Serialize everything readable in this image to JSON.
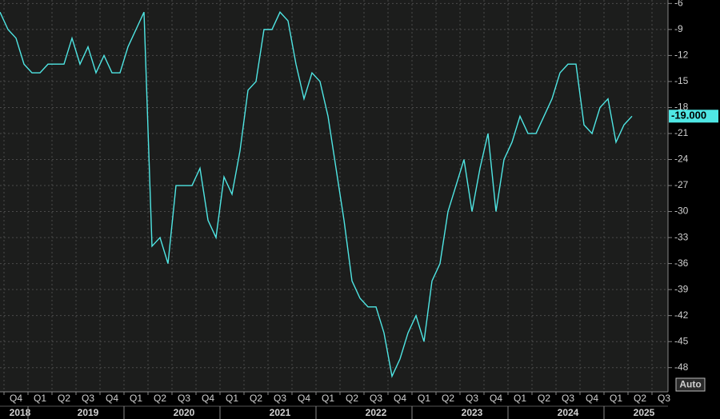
{
  "chart_data": {
    "type": "line",
    "series": [
      {
        "color": "#4fe6e4",
        "values": [
          -7,
          -9,
          -10,
          -13,
          -14,
          -14,
          -13,
          -13,
          -13,
          -10,
          -13,
          -11,
          -14,
          -12,
          -14,
          -14,
          -11,
          -9,
          -7,
          -34,
          -33,
          -36,
          -27,
          -27,
          -27,
          -25,
          -31,
          -33,
          -26,
          -28,
          -23,
          -16,
          -15,
          -9,
          -9,
          -7,
          -8,
          -13,
          -17,
          -14,
          -15,
          -19,
          -25,
          -31,
          -38,
          -40,
          -41,
          -41,
          -44,
          -49,
          -47,
          -44,
          -42,
          -45,
          -38,
          -36,
          -30,
          -27,
          -24,
          -30,
          -25,
          -21,
          -30,
          -24,
          -22,
          -19,
          -21,
          -21,
          -19,
          -17,
          -14,
          -13,
          -13,
          -20,
          -21,
          -18,
          -17,
          -22,
          -20,
          -19
        ]
      }
    ],
    "last_label": "-19.000",
    "ylim": [
      -50.7,
      -5.6
    ],
    "yticks": [
      -6,
      -9,
      -12,
      -15,
      -18,
      -21,
      -24,
      -27,
      -30,
      -33,
      -36,
      -39,
      -42,
      -45,
      -48
    ],
    "quarters": [
      "Q4",
      "Q1",
      "Q2",
      "Q3",
      "Q4",
      "Q1",
      "Q2",
      "Q3",
      "Q4",
      "Q1",
      "Q2",
      "Q3",
      "Q4",
      "Q1",
      "Q2",
      "Q3",
      "Q4",
      "Q1",
      "Q2",
      "Q3",
      "Q4",
      "Q1",
      "Q2",
      "Q3",
      "Q4",
      "Q1",
      "Q2",
      "Q3"
    ],
    "years": [
      "2018",
      "2019",
      "2020",
      "2021",
      "2022",
      "2023",
      "2024",
      "2025"
    ],
    "grid": true
  },
  "ui": {
    "auto_button": "Auto"
  }
}
